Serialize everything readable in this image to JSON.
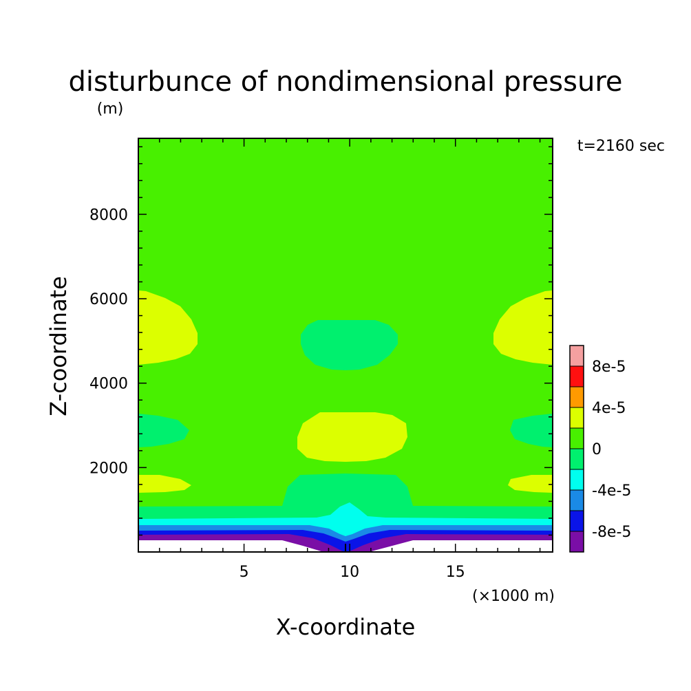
{
  "chart_data": {
    "type": "contour",
    "title": "disturbunce of nondimensional pressure",
    "units_note": "(m)",
    "time_label": "t=2160 sec",
    "xlabel": "X-coordinate",
    "ylabel": "Z-coordinate",
    "x_unit_note": "(×1000 m)",
    "xlim": [
      0,
      19.6
    ],
    "ylim": [
      0,
      9800
    ],
    "x_ticks": [
      5,
      10,
      15
    ],
    "x_tick_labels": [
      "5",
      "10",
      "15"
    ],
    "y_ticks": [
      2000,
      4000,
      6000,
      8000
    ],
    "y_tick_labels": [
      "2000",
      "4000",
      "6000",
      "8000"
    ],
    "x_minor_step": 1,
    "y_minor_step": 400,
    "background_level": "0 to 2e-5",
    "levels": [
      -0.0001,
      -8e-05,
      -6e-05,
      -4e-05,
      -2e-05,
      0,
      2e-05,
      4e-05,
      6e-05,
      8e-05,
      0.0001
    ],
    "colorbar": {
      "colors": [
        "#7a0ea6",
        "#0a14e8",
        "#1a8ae6",
        "#00ffee",
        "#00f06e",
        "#48f000",
        "#dcff00",
        "#ff9a00",
        "#ff1010",
        "#f5a0a0"
      ],
      "tick_labels": [
        "-8e-5",
        "-4e-5",
        "0",
        "4e-5",
        "8e-5"
      ],
      "tick_values": [
        -8e-05,
        -4e-05,
        0,
        4e-05,
        8e-05
      ]
    },
    "colors": {
      "background_field": "#48f000",
      "positive_2e5_4e5": "#dcff00",
      "negative_0_m2e5": "#00f06e",
      "negative_m2e5_m4e5": "#00ffee",
      "negative_m4e5_m6e5": "#1a8ae6",
      "negative_m6e5_m8e5": "#0a14e8",
      "negative_m8e5_m1e4": "#7a0ea6"
    }
  }
}
